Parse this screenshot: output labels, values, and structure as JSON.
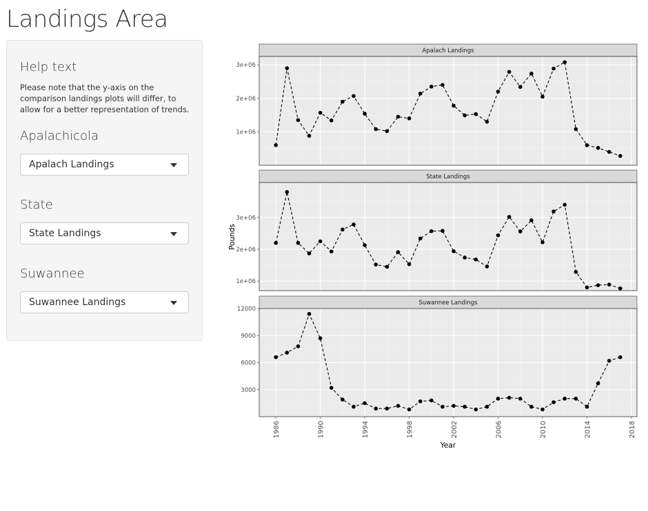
{
  "page": {
    "title": "Landings Area"
  },
  "sidebar": {
    "help_title": "Help text",
    "help_text": "Please note that the y-axis on the comparison landings plots will differ, to allow for a better representation of trends.",
    "apalachicola": {
      "label": "Apalachicola",
      "selected": "Apalach Landings"
    },
    "state": {
      "label": "State",
      "selected": "State Landings"
    },
    "suwannee": {
      "label": "Suwannee",
      "selected": "Suwannee Landings"
    }
  },
  "chart_data": {
    "type": "line",
    "line_style": "dashed with points",
    "xlabel": "Year",
    "ylabel": "Pounds",
    "x_ticks": [
      1986,
      1990,
      1994,
      1998,
      2002,
      2006,
      2010,
      2014,
      2018
    ],
    "xlim": [
      1984.5,
      2018.5
    ],
    "x": [
      1986,
      1987,
      1988,
      1989,
      1990,
      1991,
      1992,
      1993,
      1994,
      1995,
      1996,
      1997,
      1998,
      1999,
      2000,
      2001,
      2002,
      2003,
      2004,
      2005,
      2006,
      2007,
      2008,
      2009,
      2010,
      2011,
      2012,
      2013,
      2014,
      2015,
      2016,
      2017
    ],
    "panels": [
      {
        "title": "Apalach Landings",
        "ylim": [
          0,
          3250000
        ],
        "y_ticks": [
          1000000,
          2000000,
          3000000
        ],
        "y_tick_labels": [
          "1e+06",
          "2e+06",
          "3e+06"
        ],
        "values": [
          600000,
          2900000,
          1350000,
          880000,
          1570000,
          1340000,
          1900000,
          2070000,
          1540000,
          1080000,
          1020000,
          1450000,
          1400000,
          2140000,
          2350000,
          2400000,
          1780000,
          1490000,
          1530000,
          1300000,
          2200000,
          2790000,
          2340000,
          2740000,
          2050000,
          2890000,
          3080000,
          1080000,
          600000,
          520000,
          400000,
          280000
        ]
      },
      {
        "title": "State Landings",
        "ylim": [
          700000,
          4100000
        ],
        "y_ticks": [
          1000000,
          2000000,
          3000000
        ],
        "y_tick_labels": [
          "1e+06",
          "2e+06",
          "3e+06"
        ],
        "values": [
          2200000,
          3800000,
          2200000,
          1870000,
          2250000,
          1930000,
          2620000,
          2780000,
          2130000,
          1520000,
          1450000,
          1910000,
          1530000,
          2340000,
          2570000,
          2580000,
          1940000,
          1740000,
          1680000,
          1460000,
          2440000,
          3020000,
          2560000,
          2910000,
          2220000,
          3190000,
          3400000,
          1290000,
          800000,
          870000,
          890000,
          770000
        ]
      },
      {
        "title": "Suwannee Landings",
        "ylim": [
          0,
          12000
        ],
        "y_ticks": [
          3000,
          6000,
          9000,
          12000
        ],
        "y_tick_labels": [
          "3000",
          "6000",
          "9000",
          "12000"
        ],
        "values": [
          6600,
          7100,
          7800,
          11400,
          8700,
          3200,
          1900,
          1100,
          1500,
          900,
          900,
          1200,
          800,
          1700,
          1800,
          1100,
          1200,
          1100,
          800,
          1100,
          2000,
          2100,
          2000,
          1100,
          800,
          1600,
          2000,
          2000,
          1100,
          3700,
          6200,
          6600
        ]
      }
    ]
  }
}
